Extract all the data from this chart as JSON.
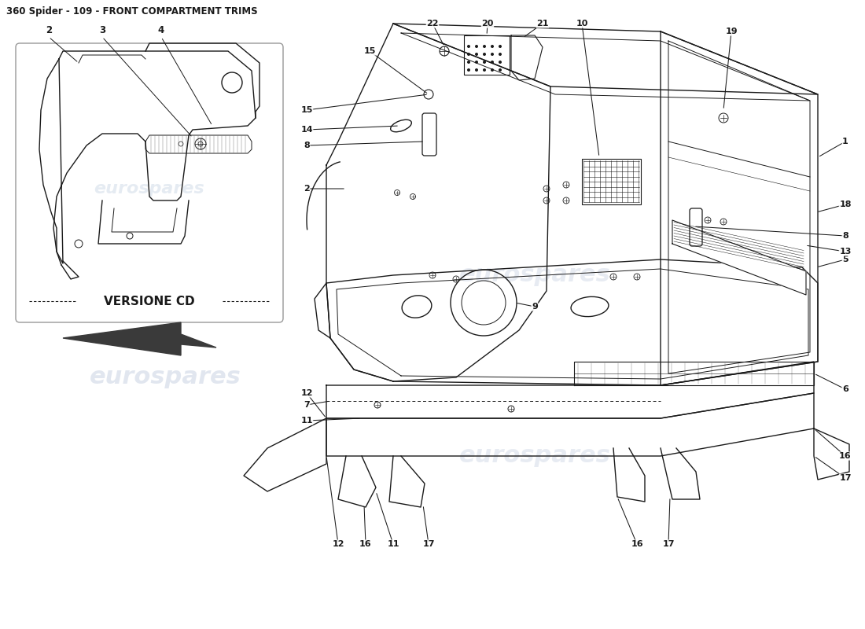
{
  "title": "360 Spider - 109 - FRONT COMPARTMENT TRIMS",
  "title_fontsize": 8.5,
  "title_fontweight": "bold",
  "bg_color": "#ffffff",
  "line_color": "#1a1a1a",
  "watermark_color": "#c5cfe0",
  "watermark_text": "eurospares",
  "versione_cd_text": "VERSIONE CD",
  "label_fontsize": 8.0
}
